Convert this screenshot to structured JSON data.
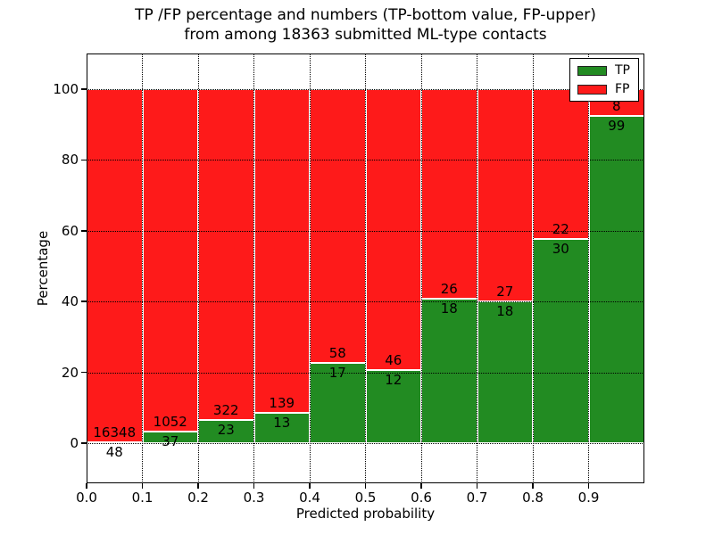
{
  "title": {
    "line1": "TP /FP percentage and numbers (TP-bottom value, FP-upper)",
    "line2": "from among 18363 submitted ML-type contacts"
  },
  "chart_data": {
    "type": "bar",
    "stacked": true,
    "normalized_to_percent": true,
    "title": "TP /FP percentage and numbers (TP-bottom value, FP-upper) from among 18363 submitted ML-type contacts",
    "xlabel": "Predicted probability",
    "ylabel": "Percentage",
    "total_contacts": 18363,
    "bin_starts": [
      0.0,
      0.1,
      0.2,
      0.3,
      0.4,
      0.5,
      0.6,
      0.7,
      0.8,
      0.9
    ],
    "bin_width": 0.1,
    "xticklabels": [
      "0.0",
      "0.1",
      "0.2",
      "0.3",
      "0.4",
      "0.5",
      "0.6",
      "0.7",
      "0.8",
      "0.9"
    ],
    "yticks": [
      0,
      20,
      40,
      60,
      80,
      100
    ],
    "ylim_display": [
      -11.3,
      110
    ],
    "grid": "dotted both axes",
    "legend": {
      "position": "upper right",
      "entries": [
        "TP",
        "FP"
      ]
    },
    "series": [
      {
        "name": "TP",
        "color": "#228b22",
        "counts": [
          48,
          37,
          23,
          13,
          17,
          12,
          18,
          18,
          30,
          99
        ]
      },
      {
        "name": "FP",
        "color": "#fe1a1a",
        "counts": [
          16348,
          1052,
          322,
          139,
          58,
          46,
          26,
          27,
          22,
          8
        ]
      }
    ]
  }
}
